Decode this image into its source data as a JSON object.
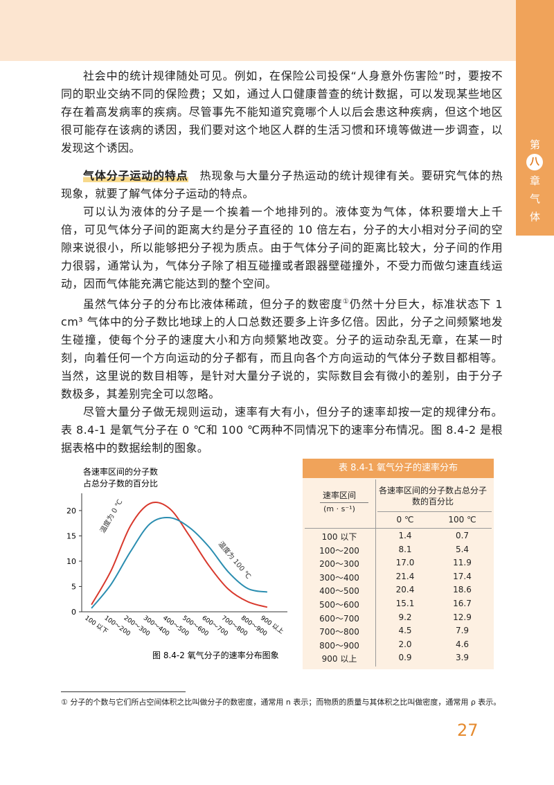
{
  "sidebar": {
    "prefix": "第",
    "number": "八",
    "suffix": "章",
    "title_1": "气",
    "title_2": "体"
  },
  "paragraphs": [
    {
      "text": "社会中的统计规律随处可见。例如，在保险公司投保“人身意外伤害险”时，要按不同的职业交纳不同的保险费；又如，通过人口健康普查的统计数据，可以发现某些地区存在着高发病率的疾病。尽管事先不能知道究竟哪个人以后会患这种疾病，但这个地区很可能存在该病的诱因，我们要对这个地区人群的生活习惯和环境等做进一步调查，以发现这个诱因。"
    },
    {
      "heading": "气体分子运动的特点",
      "text": "热现象与大量分子热运动的统计规律有关。要研究气体的热现象，就要了解气体分子运动的特点。"
    },
    {
      "text": "可以认为液体的分子是一个挨着一个地排列的。液体变为气体，体积要增大上千倍，可见气体分子间的距离大约是分子直径的 10 倍左右，分子的大小相对分子间的空隙来说很小，所以能够把分子视为质点。由于气体分子间的距离比较大，分子间的作用力很弱，通常认为，气体分子除了相互碰撞或者跟器壁碰撞外，不受力而做匀速直线运动，因而气体能充满它能达到的整个空间。"
    },
    {
      "text": "虽然气体分子的分布比液体稀疏，但分子的数密度",
      "note": "①",
      "text_2": "仍然十分巨大，标准状态下 1 cm³ 气体中的分子数比地球上的人口总数还要多上许多亿倍。因此，分子之间频繁地发生碰撞，使每个分子的速度大小和方向频繁地改变。分子的运动杂乱无章，在某一时刻，向着任何一个方向运动的分子都有，而且向各个方向运动的气体分子数目都相等。当然，这里说的数目相等，是针对大量分子说的，实际数目会有微小的差别，由于分子数极多，其差别完全可以忽略。"
    },
    {
      "text": "尽管大量分子做无规则运动，速率有大有小，但分子的速率却按一定的规律分布。表 8.4-1 是氧气分子在 0 ℃和 100 ℃两种不同情况下的速率分布情况。图 8.4-2 是根据表格中的数据绘制的图象。"
    }
  ],
  "figure": {
    "y_label_1": "各速率区间的分子数",
    "y_label_2": "占总分子数的百分比",
    "ylim": [
      0,
      23
    ],
    "yticks": [
      0,
      5,
      10,
      15,
      20
    ],
    "series": [
      {
        "name": "温度为 0 ℃",
        "color": "#d8382c"
      },
      {
        "name": "温度为 100 ℃",
        "color": "#2a8db0"
      }
    ],
    "caption": "图 8.4-2  氧气分子的速率分布图象"
  },
  "table": {
    "title": "表 8.4-1  氧气分子的速率分布",
    "header_1": "速率区间",
    "header_unit": "(m · s⁻¹)",
    "header_2": "各速率区间的分子数占总分子数的百分比",
    "header_3": "0 ℃",
    "header_4": "100 ℃",
    "rows": [
      [
        "100 以下",
        "1.4",
        "0.7"
      ],
      [
        "100～200",
        "8.1",
        "5.4"
      ],
      [
        "200～300",
        "17.0",
        "11.9"
      ],
      [
        "300～400",
        "21.4",
        "17.4"
      ],
      [
        "400～500",
        "20.4",
        "18.6"
      ],
      [
        "500～600",
        "15.1",
        "16.7"
      ],
      [
        "600～700",
        "9.2",
        "12.9"
      ],
      [
        "700～800",
        "4.5",
        "7.9"
      ],
      [
        "800～900",
        "2.0",
        "4.6"
      ],
      [
        "900 以上",
        "0.9",
        "3.9"
      ]
    ]
  },
  "footnote": "① 分子的个数与它们所占空间体积之比叫做分子的数密度，通常用 n 表示；而物质的质量与其体积之比叫做密度，通常用 ρ 表示。",
  "page_number": "27"
}
